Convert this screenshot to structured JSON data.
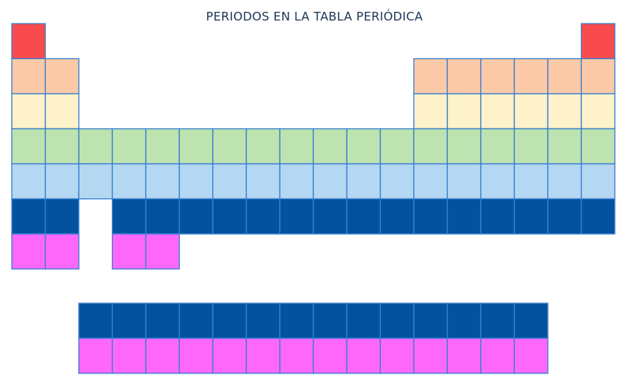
{
  "title": "PERIODOS EN LA TABLA PERIÓDICA",
  "colors": {
    "periodo-1": "#f94b4d",
    "periodo-2": "#fccaa6",
    "periodo-3": "#fdf2c9",
    "periodo-4": "#bde3b0",
    "periodo-5": "#b5d8f2",
    "periodo-6": "#02529e",
    "periodo-7": "#fd68fb",
    "border": "#3a7fd0"
  },
  "main_rows": [
    {
      "period": "periodo-1",
      "groups": [
        1,
        18
      ]
    },
    {
      "period": "periodo-2",
      "groups": [
        1,
        2,
        13,
        14,
        15,
        16,
        17,
        18
      ]
    },
    {
      "period": "periodo-3",
      "groups": [
        1,
        2,
        13,
        14,
        15,
        16,
        17,
        18
      ]
    },
    {
      "period": "periodo-4",
      "groups": [
        1,
        2,
        3,
        4,
        5,
        6,
        7,
        8,
        9,
        10,
        11,
        12,
        13,
        14,
        15,
        16,
        17,
        18
      ]
    },
    {
      "period": "periodo-5",
      "groups": [
        1,
        2,
        3,
        4,
        5,
        6,
        7,
        8,
        9,
        10,
        11,
        12,
        13,
        14,
        15,
        16,
        17,
        18
      ]
    },
    {
      "period": "periodo-6",
      "groups": [
        1,
        2,
        4,
        5,
        6,
        7,
        8,
        9,
        10,
        11,
        12,
        13,
        14,
        15,
        16,
        17,
        18
      ]
    },
    {
      "period": "periodo-7",
      "groups": [
        1,
        2,
        4,
        5
      ]
    }
  ],
  "series_rows": [
    {
      "period": "periodo-6",
      "count": 14
    },
    {
      "period": "periodo-7",
      "count": 14
    }
  ]
}
